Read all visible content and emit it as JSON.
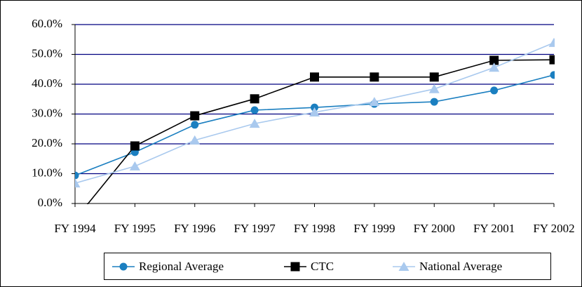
{
  "chart_data": {
    "type": "line",
    "categories": [
      "FY 1994",
      "FY 1995",
      "FY 1996",
      "FY 1997",
      "FY 1998",
      "FY 1999",
      "FY 2000",
      "FY 2001",
      "FY 2002"
    ],
    "series": [
      {
        "name": "Regional Average",
        "color": "#1b7fc0",
        "marker": "circle",
        "values": [
          9.4,
          17.2,
          26.4,
          31.3,
          32.2,
          33.4,
          34.1,
          37.9,
          43.1
        ]
      },
      {
        "name": "CTC",
        "color": "#000000",
        "marker": "square",
        "values": [
          -5.4,
          19.3,
          29.4,
          35.1,
          42.4,
          42.4,
          42.4,
          48.0,
          48.2
        ]
      },
      {
        "name": "National Average",
        "color": "#a9c9ee",
        "marker": "triangle",
        "values": [
          6.8,
          12.5,
          21.2,
          26.8,
          30.6,
          34.1,
          38.4,
          45.6,
          53.9
        ]
      }
    ],
    "ylim": [
      0,
      60
    ],
    "yticks": [
      {
        "value": 0,
        "label": "0.0%"
      },
      {
        "value": 10,
        "label": "10.0%"
      },
      {
        "value": 20,
        "label": "20.0%"
      },
      {
        "value": 30,
        "label": "30.0%"
      },
      {
        "value": 40,
        "label": "40.0%"
      },
      {
        "value": 50,
        "label": "50.0%"
      },
      {
        "value": 60,
        "label": "60.0%"
      }
    ],
    "grid": true,
    "grid_color": "#000080",
    "legend": "bottom"
  }
}
